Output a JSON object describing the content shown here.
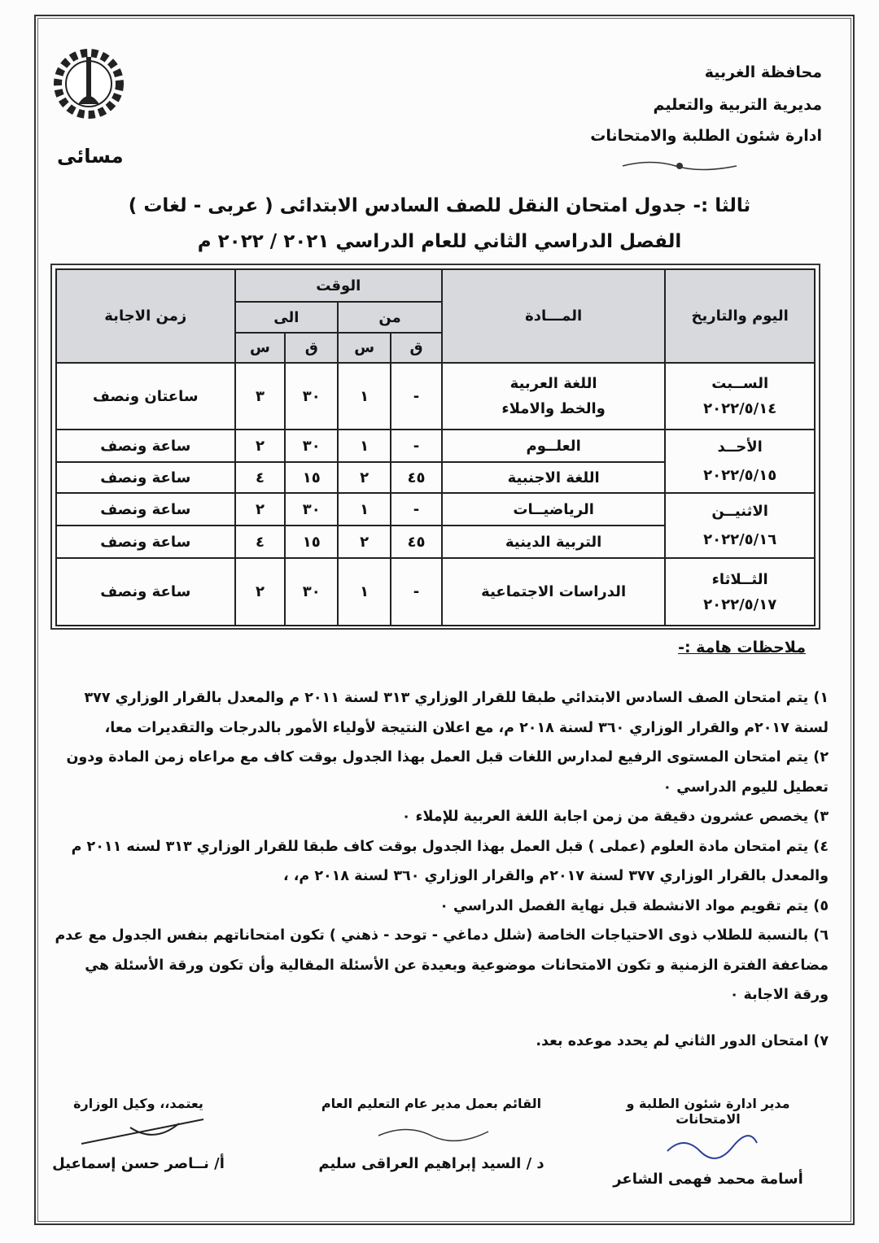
{
  "header": {
    "lines": [
      "محافظة الغربية",
      "مديرية التربية والتعليم",
      "ادارة شئون الطلبة والامتحانات"
    ],
    "logo_label": "مسائى"
  },
  "title": {
    "line1": "ثالثا :- جدول امتحان النقل للصف السادس الابتدائى ( عربى - لغات )",
    "line2": "الفصل الدراسي الثاني للعام الدراسي ٢٠٢١ / ٢٠٢٢ م"
  },
  "table": {
    "headers": {
      "day_date": "اليوم والتاريخ",
      "subject": "المـــادة",
      "time": "الوقت",
      "from": "من",
      "to": "الى",
      "minute": "ق",
      "hour": "س",
      "duration": "زمن الاجابة"
    },
    "days": [
      {
        "day": "الســبت",
        "date": "٢٠٢٢/٥/١٤",
        "rows": [
          {
            "subject": [
              "اللغة العربية",
              "والخط والاملاء"
            ],
            "from_m": "-",
            "from_h": "١",
            "to_m": "٣٠",
            "to_h": "٣",
            "duration": "ساعتان ونصف"
          }
        ]
      },
      {
        "day": "الأحــد",
        "date": "٢٠٢٢/٥/١٥",
        "rows": [
          {
            "subject": [
              "العلــوم"
            ],
            "from_m": "-",
            "from_h": "١",
            "to_m": "٣٠",
            "to_h": "٢",
            "duration": "ساعة ونصف"
          },
          {
            "subject": [
              "اللغة الاجنبية"
            ],
            "from_m": "٤٥",
            "from_h": "٢",
            "to_m": "١٥",
            "to_h": "٤",
            "duration": "ساعة ونصف"
          }
        ]
      },
      {
        "day": "الاثنيــن",
        "date": "٢٠٢٢/٥/١٦",
        "rows": [
          {
            "subject": [
              "الرياضيــات"
            ],
            "from_m": "-",
            "from_h": "١",
            "to_m": "٣٠",
            "to_h": "٢",
            "duration": "ساعة ونصف"
          },
          {
            "subject": [
              "التربية الدينية"
            ],
            "from_m": "٤٥",
            "from_h": "٢",
            "to_m": "١٥",
            "to_h": "٤",
            "duration": "ساعة ونصف"
          }
        ]
      },
      {
        "day": "الثــلاثاء",
        "date": "٢٠٢٢/٥/١٧",
        "rows": [
          {
            "subject": [
              "الدراسات الاجتماعية"
            ],
            "from_m": "-",
            "from_h": "١",
            "to_m": "٣٠",
            "to_h": "٢",
            "duration": "ساعة ونصف"
          }
        ]
      }
    ]
  },
  "notes": {
    "title": "ملاحظات هامة :-",
    "items": [
      "١) يتم امتحان الصف السادس الابتدائي طبقا للقرار الوزاري ٣١٣ لسنة ٢٠١١ م والمعدل بالقرار الوزاري ٣٧٧ لسنة ٢٠١٧م والقرار الوزاري ٣٦٠ لسنة ٢٠١٨ م، مع اعلان النتيجة لأولياء الأمور بالدرجات والتقديرات معا،",
      "٢) يتم امتحان المستوى الرفيع لمدارس اللغات قبل العمل بهذا الجدول بوقت كاف مع مراعاه زمن المادة ودون تعطيل لليوم الدراسي ٠",
      "٣) يخصص عشرون دقيقة من زمن اجابة اللغة العربية للإملاء ٠",
      "٤) يتم امتحان مادة العلوم (عملى ) قبل العمل بهذا الجدول بوقت كاف طبقا للقرار الوزاري ٣١٣ لسنه ٢٠١١ م والمعدل بالقرار الوزاري ٣٧٧ لسنة ٢٠١٧م والقرار الوزاري ٣٦٠ لسنة ٢٠١٨ م، ،",
      "٥) يتم تقويم مواد الانشطة قبل نهاية الفصل الدراسي ٠",
      "٦) بالنسبة للطلاب ذوى الاحتياجات الخاصة (شلل دماغي - توحد - ذهني ) تكون امتحاناتهم بنفس الجدول مع عدم مضاعفة الفترة الزمنية و تكون الامتحانات موضوعية وبعيدة عن الأسئلة المقالية وأن تكون ورقة الأسئلة هي ورقة الاجابة ٠",
      "٧) امتحان الدور الثاني لم يحدد موعده بعد."
    ]
  },
  "signatures": [
    {
      "title": "مدير ادارة شئون الطلبة و الامتحانات",
      "name": "أسامة محمد فهمى الشاعر"
    },
    {
      "title": "القائم بعمل مدير عام التعليم العام",
      "name": "د / السيد إبراهيم العراقى سليم"
    },
    {
      "title": "يعتمد،، وكيل الوزارة",
      "name": "أ/ نــاصر حسن إسماعيل"
    }
  ]
}
